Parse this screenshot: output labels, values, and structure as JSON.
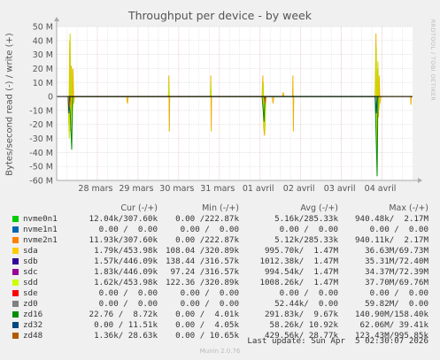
{
  "chart_data": {
    "type": "line",
    "title": "Throughput per device - by week",
    "ylabel": "Bytes/second read (-) / write (+)",
    "ylim": [
      -60000000,
      50000000
    ],
    "y_ticks": [
      "50 M",
      "40 M",
      "30 M",
      "20 M",
      "10 M",
      "0",
      "-10 M",
      "-20 M",
      "-30 M",
      "-40 M",
      "-50 M",
      "-60 M"
    ],
    "y_tick_values": [
      50000000,
      40000000,
      30000000,
      20000000,
      10000000,
      0,
      -10000000,
      -20000000,
      -30000000,
      -40000000,
      -50000000,
      -60000000
    ],
    "x_ticks": [
      "28 mars",
      "29 mars",
      "30 mars",
      "31 mars",
      "01 avril",
      "02 avril",
      "03 avril",
      "04 avril"
    ],
    "x_range_days": [
      0,
      8.75
    ],
    "grid": true,
    "x_tick_days": [
      1,
      2,
      3,
      4,
      5,
      6,
      7,
      8
    ],
    "series": [
      {
        "name": "sda",
        "color": "#f0b000",
        "points": [
          [
            0.28,
            0
          ],
          [
            0.3,
            -20000000
          ],
          [
            0.32,
            40000000
          ],
          [
            0.34,
            -25000000
          ],
          [
            0.36,
            22000000
          ],
          [
            0.38,
            -20000000
          ],
          [
            0.4,
            20000000
          ],
          [
            0.42,
            -5000000
          ],
          [
            0.44,
            0
          ],
          [
            1.72,
            0
          ],
          [
            1.74,
            -5000000
          ],
          [
            1.76,
            0
          ],
          [
            2.75,
            0
          ],
          [
            2.76,
            15000000
          ],
          [
            2.77,
            -25000000
          ],
          [
            2.78,
            0
          ],
          [
            3.78,
            0
          ],
          [
            3.79,
            15000000
          ],
          [
            3.8,
            -25000000
          ],
          [
            3.81,
            0
          ],
          [
            5.05,
            0
          ],
          [
            5.07,
            15000000
          ],
          [
            5.09,
            -22000000
          ],
          [
            5.11,
            -28000000
          ],
          [
            5.13,
            -10000000
          ],
          [
            5.15,
            0
          ],
          [
            5.3,
            0
          ],
          [
            5.32,
            -5000000
          ],
          [
            5.34,
            0
          ],
          [
            5.55,
            0
          ],
          [
            5.57,
            3000000
          ],
          [
            5.59,
            0
          ],
          [
            5.8,
            0
          ],
          [
            5.81,
            15000000
          ],
          [
            5.82,
            -25000000
          ],
          [
            5.83,
            0
          ],
          [
            7.83,
            0
          ],
          [
            7.85,
            45000000
          ],
          [
            7.87,
            -40000000
          ],
          [
            7.89,
            20000000
          ],
          [
            7.91,
            -15000000
          ],
          [
            7.93,
            15000000
          ],
          [
            7.95,
            -5000000
          ],
          [
            7.97,
            0
          ],
          [
            8.7,
            0
          ],
          [
            8.71,
            -6000000
          ],
          [
            8.72,
            0
          ]
        ]
      },
      {
        "name": "sdd",
        "color": "#c8d800",
        "points": [
          [
            0.28,
            0
          ],
          [
            0.31,
            -30000000
          ],
          [
            0.33,
            45000000
          ],
          [
            0.35,
            -20000000
          ],
          [
            0.37,
            20000000
          ],
          [
            0.39,
            -10000000
          ],
          [
            0.41,
            0
          ],
          [
            2.75,
            0
          ],
          [
            2.76,
            10000000
          ],
          [
            2.77,
            0
          ],
          [
            3.78,
            0
          ],
          [
            3.79,
            10000000
          ],
          [
            3.8,
            0
          ],
          [
            5.05,
            0
          ],
          [
            5.08,
            10000000
          ],
          [
            5.1,
            -20000000
          ],
          [
            5.12,
            -25000000
          ],
          [
            5.14,
            0
          ],
          [
            7.83,
            0
          ],
          [
            7.86,
            35000000
          ],
          [
            7.88,
            -30000000
          ],
          [
            7.9,
            25000000
          ],
          [
            7.92,
            -10000000
          ],
          [
            7.95,
            0
          ]
        ]
      },
      {
        "name": "zd16",
        "color": "#008f00",
        "points": [
          [
            0.28,
            0
          ],
          [
            0.33,
            -10000000
          ],
          [
            0.37,
            -38000000
          ],
          [
            0.39,
            0
          ],
          [
            5.05,
            0
          ],
          [
            5.1,
            -18000000
          ],
          [
            5.12,
            0
          ],
          [
            7.83,
            0
          ],
          [
            7.88,
            -57000000
          ],
          [
            7.9,
            0
          ]
        ]
      },
      {
        "name": "zd32",
        "color": "#00516c",
        "points": [
          [
            0.28,
            0
          ],
          [
            0.3,
            -12000000
          ],
          [
            0.32,
            0
          ],
          [
            7.83,
            0
          ],
          [
            7.86,
            -12000000
          ],
          [
            7.88,
            0
          ]
        ]
      },
      {
        "name": "zd48",
        "color": "#b05a00",
        "points": [
          [
            0.28,
            0
          ],
          [
            0.32,
            -8000000
          ],
          [
            0.34,
            0
          ],
          [
            5.1,
            0
          ],
          [
            5.12,
            -5000000
          ],
          [
            5.14,
            0
          ]
        ]
      }
    ]
  },
  "side_text": "RRDTOOL / TOBI OETIKER",
  "legend": {
    "headers": {
      "cur": "Cur (-/+)",
      "min": "Min (-/+)",
      "avg": "Avg (-/+)",
      "max": "Max (-/+)"
    },
    "rows": [
      {
        "name": "nvme0n1",
        "color": "#00cc00",
        "cur": "12.04k/307.60k",
        "min": "0.00 /222.87k",
        "avg": "5.16k/285.33k",
        "max": "940.48k/  2.17M"
      },
      {
        "name": "nvme1n1",
        "color": "#0066b3",
        "cur": "0.00 /  0.00",
        "min": "0.00 /  0.00",
        "avg": "0.00 /  0.00",
        "max": "0.00 /  0.00"
      },
      {
        "name": "nvme2n1",
        "color": "#ff8000",
        "cur": "11.93k/307.60k",
        "min": "0.00 /222.87k",
        "avg": "5.12k/285.33k",
        "max": "940.11k/  2.17M"
      },
      {
        "name": "sda",
        "color": "#ffcc00",
        "cur": "1.79k/453.98k",
        "min": "108.04 /320.89k",
        "avg": "995.70k/  1.47M",
        "max": "36.63M/69.73M"
      },
      {
        "name": "sdb",
        "color": "#330099",
        "cur": "1.57k/446.09k",
        "min": "138.44 /316.57k",
        "avg": "1012.38k/  1.47M",
        "max": "35.31M/72.40M"
      },
      {
        "name": "sdc",
        "color": "#990099",
        "cur": "1.83k/446.09k",
        "min": "97.24 /316.57k",
        "avg": "994.54k/  1.47M",
        "max": "34.37M/72.39M"
      },
      {
        "name": "sdd",
        "color": "#ccff00",
        "cur": "1.62k/453.98k",
        "min": "122.36 /320.89k",
        "avg": "1008.26k/  1.47M",
        "max": "37.70M/69.76M"
      },
      {
        "name": "sde",
        "color": "#ff0000",
        "cur": "0.00 /  0.00",
        "min": "0.00 /  0.00",
        "avg": "0.00 /  0.00",
        "max": "0.00 /  0.00"
      },
      {
        "name": "zd0",
        "color": "#808080",
        "cur": "0.00 /  0.00",
        "min": "0.00 /  0.00",
        "avg": "52.44k/  0.00",
        "max": "59.82M/  0.00"
      },
      {
        "name": "zd16",
        "color": "#008f00",
        "cur": "22.76 /  8.72k",
        "min": "0.00 /  4.01k",
        "avg": "291.83k/  9.67k",
        "max": "140.90M/158.40k"
      },
      {
        "name": "zd32",
        "color": "#00487d",
        "cur": "0.00 / 11.51k",
        "min": "0.00 /  4.05k",
        "avg": "58.26k/ 10.92k",
        "max": "62.06M/ 39.41k"
      },
      {
        "name": "zd48",
        "color": "#b35a00",
        "cur": "1.36k/ 28.63k",
        "min": "0.00 / 10.65k",
        "avg": "429.56k/ 28.77k",
        "max": "123.43M/995.85k"
      }
    ]
  },
  "last_update": "Last update: Sun Apr  5 02:30:07 2026",
  "footer": "Munin 2.0.76"
}
